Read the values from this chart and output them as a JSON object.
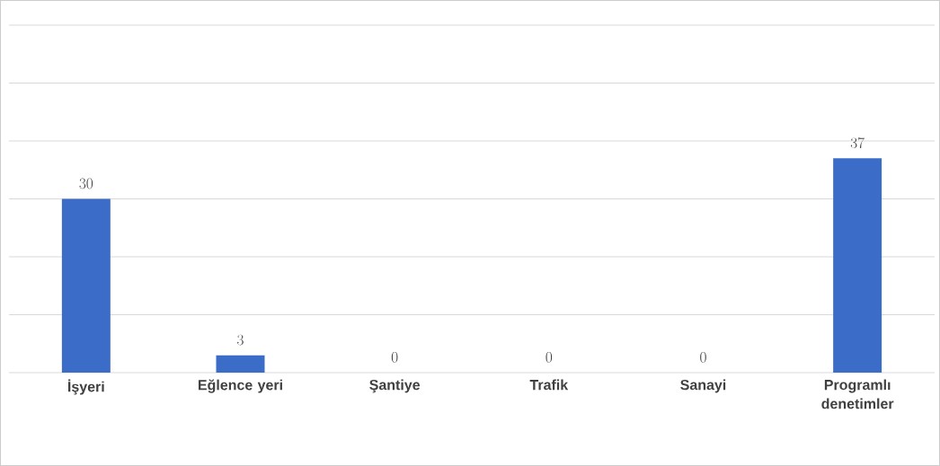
{
  "chart_data": {
    "type": "bar",
    "categories": [
      "İşyeri",
      "Eğlence yeri",
      "Şantiye",
      "Trafik",
      "Sanayi",
      "Programlı denetimler"
    ],
    "values": [
      30,
      3,
      0,
      0,
      0,
      37
    ],
    "color": "#3b6cc8",
    "ylim": [
      0,
      60
    ],
    "yticks": [
      {
        "value": 0,
        "label": null
      },
      {
        "value": 10,
        "label": null
      },
      {
        "value": 20,
        "label": null
      },
      {
        "value": 30,
        "label": null
      },
      {
        "value": 40,
        "label": null
      },
      {
        "value": 50,
        "label": null
      },
      {
        "value": 60,
        "label": null
      }
    ],
    "grid": "y",
    "data_labels": true
  }
}
